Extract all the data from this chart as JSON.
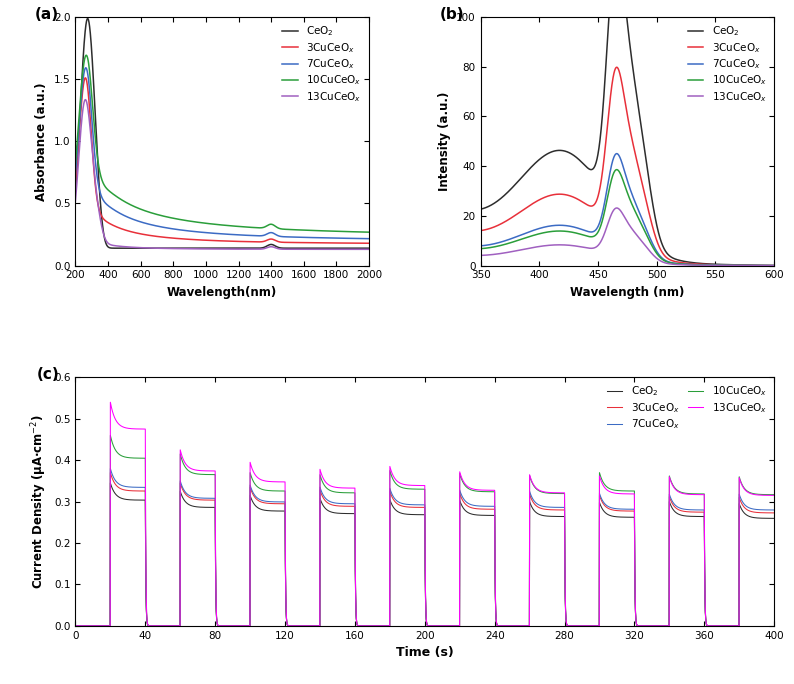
{
  "panel_a": {
    "xlabel": "Wavelength(nm)",
    "ylabel": "Absorbance (a.u.)",
    "xlim": [
      200,
      2000
    ],
    "ylim": [
      0.0,
      2.0
    ],
    "yticks": [
      0.0,
      0.5,
      1.0,
      1.5,
      2.0
    ],
    "xticks": [
      200,
      400,
      600,
      800,
      1000,
      1200,
      1400,
      1600,
      1800,
      2000
    ],
    "series": [
      {
        "label": "CeO$_2$",
        "color": "#2d2d2d"
      },
      {
        "label": "3CuCeO$_x$",
        "color": "#e8303a"
      },
      {
        "label": "7CuCeO$_x$",
        "color": "#3c6bc4"
      },
      {
        "label": "10CuCeO$_x$",
        "color": "#2a9e3a"
      },
      {
        "label": "13CuCeO$_x$",
        "color": "#a060c0"
      }
    ]
  },
  "panel_b": {
    "xlabel": "Wavelength (nm)",
    "ylabel": "Intensity (a.u.)",
    "xlim": [
      350,
      600
    ],
    "ylim": [
      0,
      100
    ],
    "yticks": [
      0,
      20,
      40,
      60,
      80,
      100
    ],
    "xticks": [
      350,
      400,
      450,
      500,
      550,
      600
    ],
    "series": [
      {
        "label": "CeO$_2$",
        "color": "#2d2d2d"
      },
      {
        "label": "3CuCeO$_x$",
        "color": "#e8303a"
      },
      {
        "label": "7CuCeO$_x$",
        "color": "#3c6bc4"
      },
      {
        "label": "10CuCeO$_x$",
        "color": "#2a9e3a"
      },
      {
        "label": "13CuCeO$_x$",
        "color": "#a060c0"
      }
    ]
  },
  "panel_c": {
    "xlabel": "Time (s)",
    "ylabel": "Current Density (μA·cm$^{-2}$)",
    "xlim": [
      0,
      400
    ],
    "ylim": [
      -0.02,
      0.6
    ],
    "yticks": [
      0.0,
      0.1,
      0.2,
      0.3,
      0.4,
      0.5,
      0.6
    ],
    "xticks": [
      0,
      40,
      80,
      120,
      160,
      200,
      240,
      280,
      320,
      360,
      400
    ],
    "series": [
      {
        "label": "CeO$_2$",
        "color": "#2d2d2d"
      },
      {
        "label": "3CuCeO$_x$",
        "color": "#e8303a"
      },
      {
        "label": "7CuCeO$_x$",
        "color": "#3c6bc4"
      },
      {
        "label": "10CuCeO$_x$",
        "color": "#2a9e3a"
      },
      {
        "label": "13CuCeO$_x$",
        "color": "#ff00ff"
      }
    ],
    "light_on_start": 20,
    "period": 40,
    "duty": 20,
    "num_cycles": 10,
    "peak_heights": {
      "CeO2": [
        0.345,
        0.325,
        0.315,
        0.308,
        0.305,
        0.303,
        0.3,
        0.298,
        0.3,
        0.295
      ],
      "3CuCeO": [
        0.37,
        0.345,
        0.335,
        0.328,
        0.325,
        0.32,
        0.318,
        0.315,
        0.312,
        0.31
      ],
      "7CuCeO": [
        0.38,
        0.35,
        0.34,
        0.335,
        0.332,
        0.328,
        0.325,
        0.32,
        0.318,
        0.318
      ],
      "10CuCeO": [
        0.46,
        0.415,
        0.37,
        0.365,
        0.375,
        0.368,
        0.363,
        0.37,
        0.362,
        0.36
      ],
      "13CuCeO": [
        0.54,
        0.425,
        0.395,
        0.378,
        0.385,
        0.372,
        0.365,
        0.362,
        0.36,
        0.358
      ]
    }
  }
}
